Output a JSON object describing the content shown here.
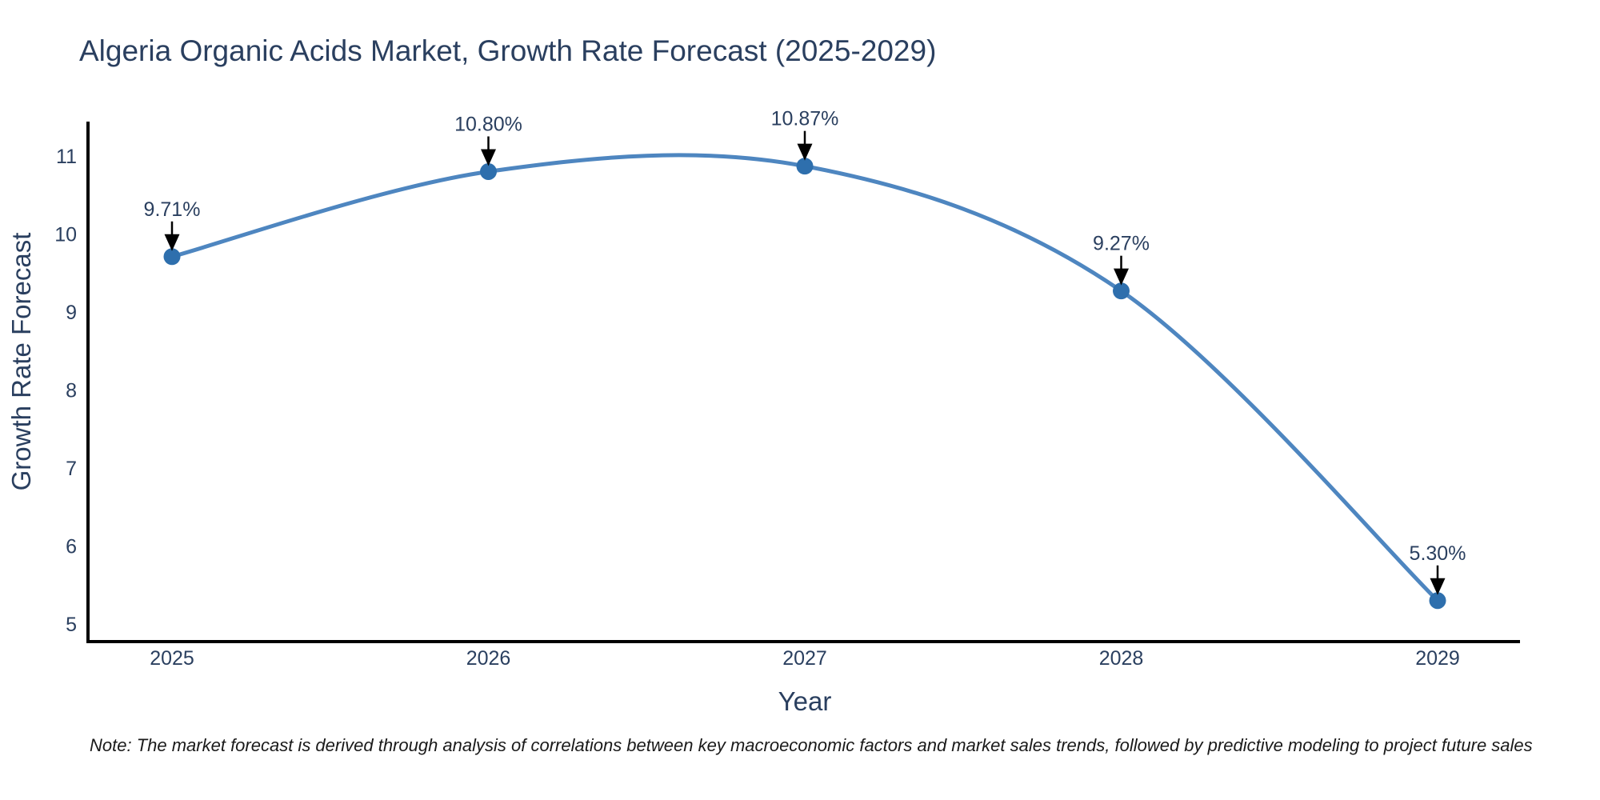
{
  "chart_data": {
    "type": "line",
    "title": "Algeria Organic Acids Market, Growth Rate Forecast (2025-2029)",
    "xlabel": "Year",
    "ylabel": "Growth Rate Forecast",
    "x": [
      2025,
      2026,
      2027,
      2028,
      2029
    ],
    "values": [
      9.71,
      10.8,
      10.87,
      9.27,
      5.3
    ],
    "point_labels": [
      "9.71%",
      "10.80%",
      "10.87%",
      "9.27%",
      "5.30%"
    ],
    "x_tick_labels": [
      "2025",
      "2026",
      "2027",
      "2028",
      "2029"
    ],
    "y_ticks": [
      5,
      6,
      7,
      8,
      9,
      10,
      11
    ],
    "ylim": [
      5,
      11.5
    ],
    "xlim": [
      2024.73,
      2029.26
    ],
    "grid": false,
    "legend": "none",
    "curve_style": "spline",
    "line_color": "#4e86c0",
    "marker_color": "#2e6fad",
    "axis_color": "#000000",
    "text_color": "#2a3f5f",
    "annotation_arrow_color": "#000000"
  },
  "note": "Note: The market forecast is derived through analysis of correlations between key macroeconomic factors and market sales trends, followed by predictive modeling to project future sales"
}
